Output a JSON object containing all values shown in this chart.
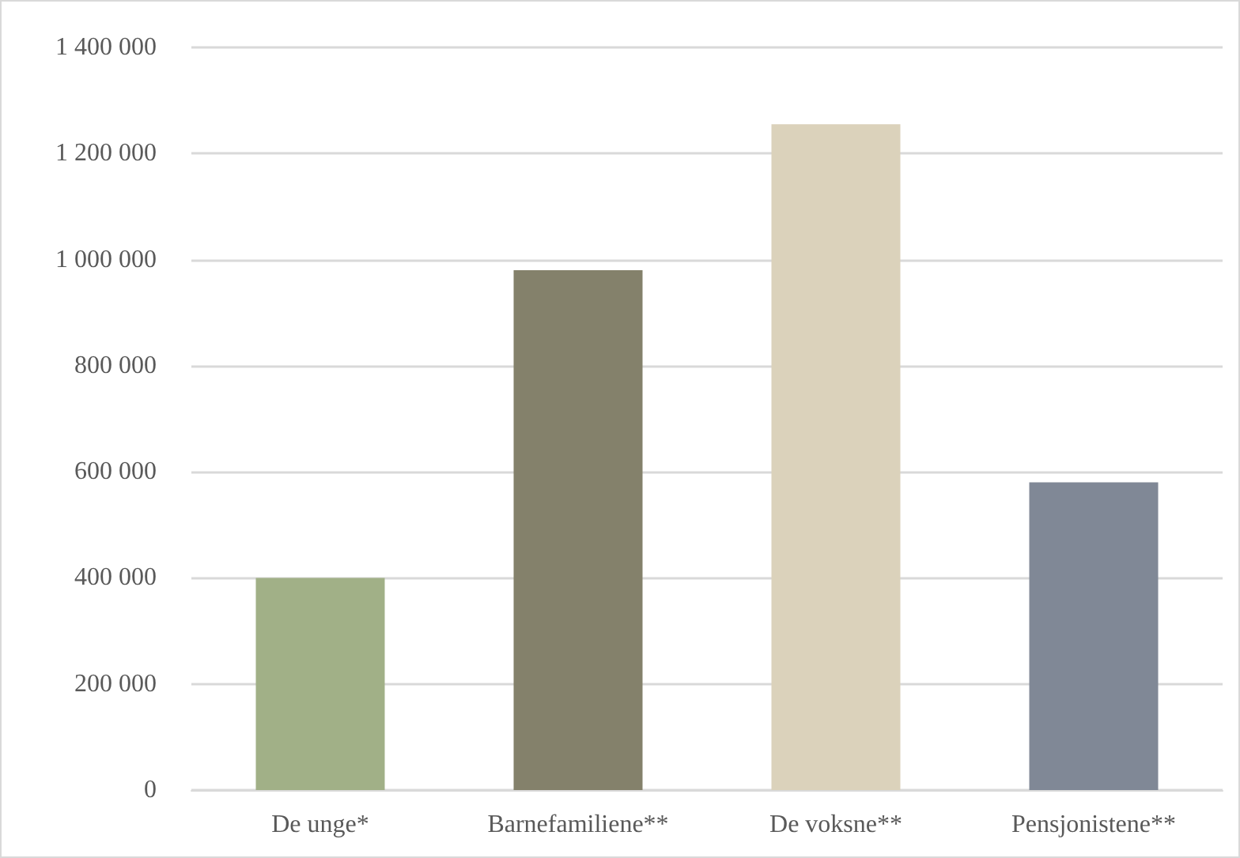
{
  "chart_data": {
    "type": "bar",
    "categories": [
      "De unge*",
      "Barnefamiliene**",
      "De voksne**",
      "Pensjonistene**"
    ],
    "values": [
      400000,
      980000,
      1255000,
      580000
    ],
    "colors": [
      "#a1b087",
      "#84816b",
      "#dbd2bb",
      "#808896"
    ],
    "ylim": [
      0,
      1400000
    ],
    "yticks": [
      {
        "value": 0,
        "label": "0"
      },
      {
        "value": 200000,
        "label": "200 000"
      },
      {
        "value": 400000,
        "label": "400 000"
      },
      {
        "value": 600000,
        "label": "600 000"
      },
      {
        "value": 800000,
        "label": "800 000"
      },
      {
        "value": 1000000,
        "label": "1 000 000"
      },
      {
        "value": 1200000,
        "label": "1 200 000"
      },
      {
        "value": 1400000,
        "label": "1 400 000"
      }
    ],
    "grid": "y"
  }
}
